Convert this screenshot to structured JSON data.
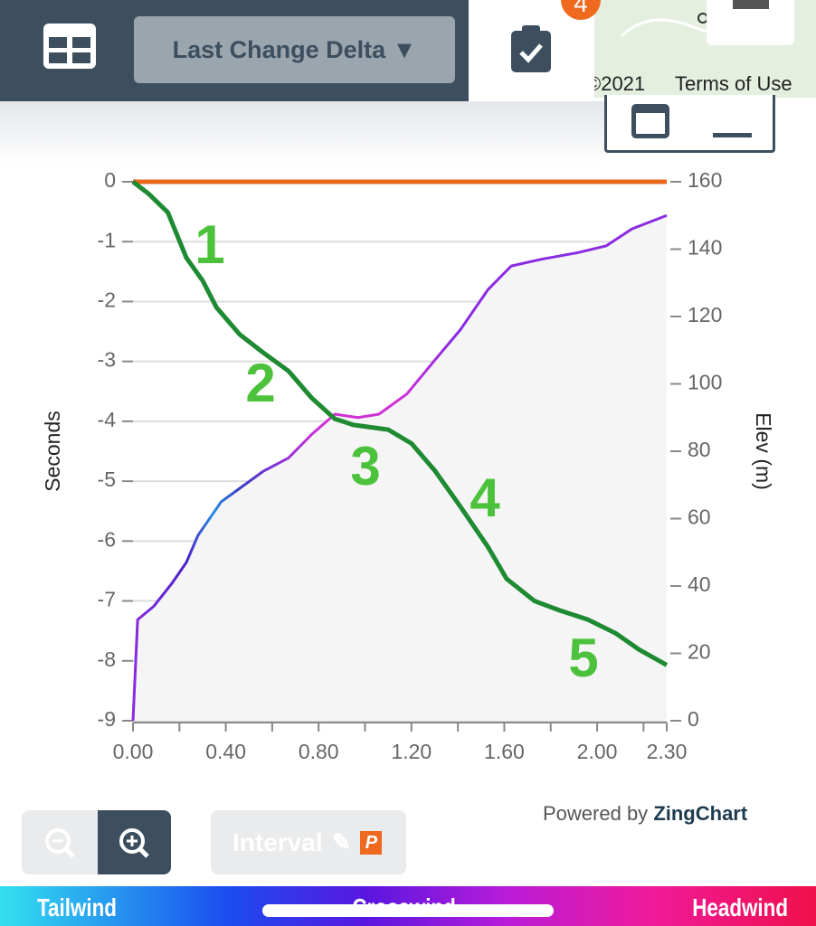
{
  "toolbar": {
    "dropdown": "Last Change Delta ▼",
    "badge": "4"
  },
  "map": {
    "copyright": "©2021",
    "terms": "Terms of Use"
  },
  "chart_data": {
    "type": "line",
    "xlim": [
      0,
      2.3
    ],
    "xticks": [
      {
        "value": 0,
        "label": "0.00"
      },
      {
        "value": 0.4,
        "label": "0.40"
      },
      {
        "value": 0.8,
        "label": "0.80"
      },
      {
        "value": 1.2,
        "label": "1.20"
      },
      {
        "value": 1.6,
        "label": "1.60"
      },
      {
        "value": 2.0,
        "label": "2.00"
      },
      {
        "value": 2.3,
        "label": "2.30"
      }
    ],
    "xminor_ticks": [
      0.2,
      0.6,
      1.0,
      1.4,
      1.8,
      2.2
    ],
    "ylabel": "Seconds",
    "ylim": [
      -9,
      0
    ],
    "yticks": [
      0,
      -1,
      -2,
      -3,
      -4,
      -5,
      -6,
      -7,
      -8,
      -9
    ],
    "y2label": "Elev (m)",
    "y2lim": [
      0,
      160
    ],
    "y2ticks": [
      0,
      20,
      40,
      60,
      80,
      100,
      120,
      140,
      160
    ],
    "grid": true,
    "series": [
      {
        "color": "#e8671b",
        "x": [
          0,
          2.3
        ],
        "values": [
          0,
          0
        ]
      },
      {
        "color": "#8a2be2",
        "axis": "y2",
        "fill": "#f5f5f5",
        "x": [
          0,
          0.02,
          0.09,
          0.17,
          0.23,
          0.28,
          0.38,
          0.46,
          0.56,
          0.67,
          0.77,
          0.87,
          0.97,
          1.06,
          1.18,
          1.3,
          1.41,
          1.53,
          1.63,
          1.76,
          1.92,
          2.04,
          2.15,
          2.3
        ],
        "values": [
          0,
          30,
          34,
          41,
          47,
          55,
          65,
          69,
          74,
          78,
          85,
          91,
          90,
          91,
          97,
          107,
          116,
          128,
          135,
          137,
          139,
          141,
          146,
          150
        ]
      },
      {
        "color": "#1e8a32",
        "x": [
          0,
          0.07,
          0.15,
          0.23,
          0.3,
          0.36,
          0.46,
          0.56,
          0.67,
          0.77,
          0.87,
          0.95,
          1.1,
          1.2,
          1.3,
          1.41,
          1.53,
          1.61,
          1.73,
          1.84,
          1.96,
          2.08,
          2.18,
          2.3
        ],
        "values": [
          0,
          -0.21,
          -0.51,
          -1.27,
          -1.65,
          -2.1,
          -2.55,
          -2.85,
          -3.16,
          -3.61,
          -3.96,
          -4.06,
          -4.14,
          -4.37,
          -4.82,
          -5.42,
          -6.1,
          -6.63,
          -7.0,
          -7.16,
          -7.31,
          -7.54,
          -7.81,
          -8.07
        ]
      }
    ],
    "annotations": [
      "1",
      "2",
      "3",
      "4",
      "5"
    ]
  },
  "footer": {
    "powered": "Powered by",
    "brand": "ZingChart",
    "interval": "Interval",
    "p": "P",
    "tailwind": "Tailwind",
    "crosswind": "Crosswind",
    "headwind": "Headwind"
  }
}
